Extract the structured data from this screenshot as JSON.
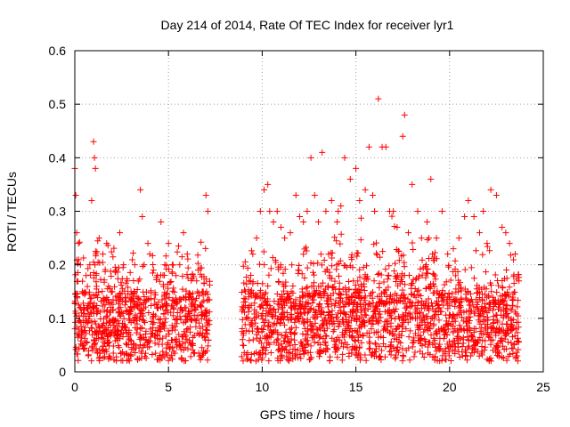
{
  "chart_data": {
    "type": "scatter",
    "title": "Day 214 of 2014, Rate Of TEC Index for receiver lyr1",
    "xlabel": "GPS time / hours",
    "ylabel": "ROTI / TECUs",
    "xlim": [
      0,
      25
    ],
    "ylim": [
      0,
      0.6
    ],
    "x_ticks": [
      0,
      5,
      10,
      15,
      20,
      25
    ],
    "x_tick_labels": [
      "0",
      "5",
      "10",
      "15",
      "20",
      "25"
    ],
    "y_ticks": [
      0,
      0.1,
      0.2,
      0.3,
      0.4,
      0.5,
      0.6
    ],
    "y_tick_labels": [
      "0",
      "0.1",
      "0.2",
      "0.3",
      "0.4",
      "0.5",
      "0.6"
    ],
    "grid": true,
    "marker": "+",
    "color": "#ff0000",
    "series": [
      {
        "name": "ROTI",
        "x": [
          0.0,
          0.05,
          0.1,
          0.2,
          0.3,
          0.4,
          0.5,
          0.6,
          0.8,
          0.9,
          1.0,
          1.05,
          1.1,
          1.3,
          1.5,
          1.7,
          1.8,
          2.0,
          2.2,
          2.4,
          2.6,
          2.8,
          3.0,
          3.2,
          3.5,
          3.6,
          3.7,
          3.9,
          4.0,
          4.2,
          4.4,
          4.6,
          4.8,
          5.0,
          5.2,
          5.4,
          5.6,
          5.8,
          6.0,
          6.2,
          6.5,
          6.8,
          7.0,
          7.1,
          9.0,
          9.1,
          9.3,
          9.5,
          9.7,
          9.9,
          10.1,
          10.3,
          10.4,
          10.6,
          10.8,
          11.0,
          11.2,
          11.5,
          11.8,
          12.0,
          12.2,
          12.4,
          12.6,
          12.8,
          13.0,
          13.2,
          13.4,
          13.7,
          14.0,
          14.2,
          14.4,
          14.7,
          15.0,
          15.2,
          15.5,
          15.7,
          15.9,
          16.0,
          16.2,
          16.4,
          16.6,
          16.8,
          17.0,
          17.2,
          17.5,
          17.6,
          17.8,
          18.0,
          18.3,
          18.5,
          18.8,
          19.0,
          19.3,
          19.6,
          19.9,
          20.2,
          20.5,
          20.8,
          21.0,
          21.3,
          21.6,
          21.8,
          22.0,
          22.2,
          22.5,
          22.8,
          23.0,
          23.2,
          23.5,
          23.7
        ],
        "y": [
          0.38,
          0.33,
          0.26,
          0.24,
          0.2,
          0.15,
          0.12,
          0.18,
          0.2,
          0.32,
          0.43,
          0.4,
          0.38,
          0.25,
          0.22,
          0.24,
          0.16,
          0.15,
          0.19,
          0.26,
          0.2,
          0.17,
          0.15,
          0.2,
          0.34,
          0.29,
          0.2,
          0.24,
          0.22,
          0.19,
          0.18,
          0.28,
          0.2,
          0.24,
          0.2,
          0.18,
          0.2,
          0.26,
          0.22,
          0.14,
          0.17,
          0.13,
          0.33,
          0.3,
          0.12,
          0.15,
          0.17,
          0.22,
          0.25,
          0.3,
          0.34,
          0.35,
          0.3,
          0.28,
          0.3,
          0.27,
          0.25,
          0.26,
          0.33,
          0.29,
          0.28,
          0.3,
          0.4,
          0.33,
          0.28,
          0.41,
          0.3,
          0.32,
          0.28,
          0.31,
          0.4,
          0.36,
          0.38,
          0.32,
          0.34,
          0.42,
          0.33,
          0.3,
          0.51,
          0.42,
          0.42,
          0.3,
          0.3,
          0.27,
          0.44,
          0.48,
          0.26,
          0.35,
          0.3,
          0.25,
          0.28,
          0.36,
          0.25,
          0.3,
          0.22,
          0.23,
          0.25,
          0.29,
          0.32,
          0.29,
          0.26,
          0.3,
          0.24,
          0.34,
          0.33,
          0.27,
          0.26,
          0.24,
          0.22,
          0.17
        ],
        "density_note": "dense cloud of points between 0.01 and 0.25 TECUs over 0–7.2 h and 8.9–23.7 h"
      }
    ]
  }
}
